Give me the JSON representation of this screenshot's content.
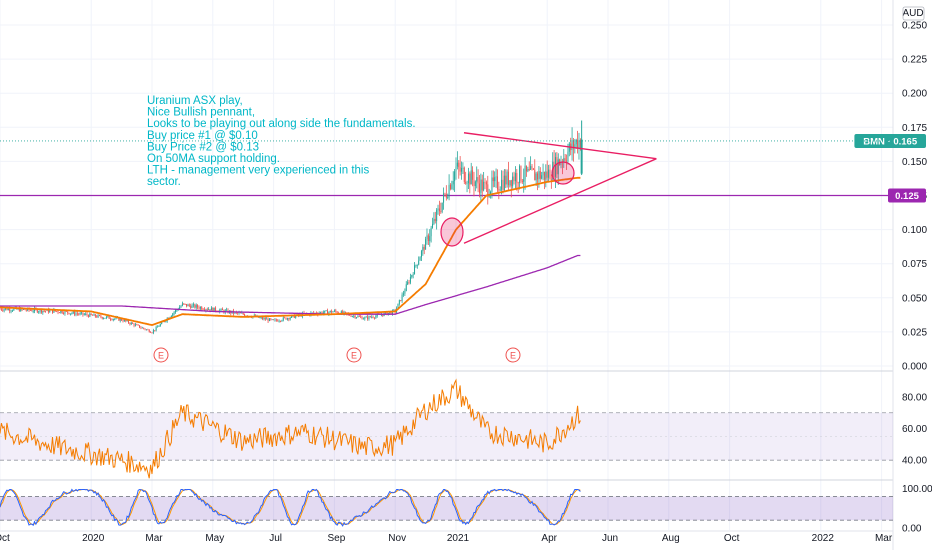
{
  "chart_data": {
    "type": "candlestick",
    "currency": "AUD",
    "price_axis": {
      "ticks": [
        "0.250",
        "0.225",
        "0.200",
        "0.175",
        "0.150",
        "0.125",
        "0.100",
        "0.075",
        "0.050",
        "0.025",
        "0.000"
      ],
      "ylim": [
        0.0,
        0.26
      ]
    },
    "time_axis": {
      "ticks": [
        "Oct",
        "2020",
        "Mar",
        "May",
        "Jul",
        "Sep",
        "Nov",
        "2021",
        "Apr",
        "Jun",
        "Aug",
        "Oct",
        "2022",
        "Mar"
      ]
    },
    "badges": [
      {
        "label": "BMN · 0.165",
        "value": 0.165,
        "color": "#26a69a"
      },
      {
        "label": "0.125",
        "value": 0.125,
        "color": "#9c27b0"
      }
    ],
    "horizontal_line": {
      "value": 0.125,
      "color": "#9c27b0"
    },
    "annotation_lines": [
      "Uranium ASX play,",
      "Nice Bullish pennant,",
      "Looks to be playing out along side the fundamentals.",
      "Buy price #1 @ $0.10",
      "Buy Price #2 @ $0.13",
      "On 50MA support holding.",
      "LTH - management very experienced in this",
      "sector."
    ],
    "pennant": {
      "upper_start": [
        "2021-01",
        0.171
      ],
      "upper_end": [
        "2021-07",
        0.152
      ],
      "lower_start": [
        "2021-01",
        0.09
      ],
      "lower_end": [
        "2021-07",
        0.152
      ]
    },
    "earnings_markers": [
      "E",
      "E",
      "E"
    ],
    "close_anchor_points": [
      [
        "2019-10",
        0.042
      ],
      [
        "2019-12",
        0.04
      ],
      [
        "2020-02",
        0.034
      ],
      [
        "2020-03",
        0.025
      ],
      [
        "2020-04",
        0.045
      ],
      [
        "2020-06",
        0.038
      ],
      [
        "2020-07",
        0.033
      ],
      [
        "2020-08",
        0.038
      ],
      [
        "2020-09",
        0.04
      ],
      [
        "2020-10",
        0.035
      ],
      [
        "2020-11",
        0.04
      ],
      [
        "2020-12",
        0.09
      ],
      [
        "2021-01",
        0.145
      ],
      [
        "2021-02",
        0.13
      ],
      [
        "2021-03",
        0.14
      ],
      [
        "2021-04",
        0.14
      ],
      [
        "2021-05",
        0.165
      ]
    ],
    "ma50_anchor_points": [
      [
        "2019-10",
        0.043
      ],
      [
        "2020-01",
        0.04
      ],
      [
        "2020-03",
        0.03
      ],
      [
        "2020-04",
        0.038
      ],
      [
        "2020-06",
        0.036
      ],
      [
        "2020-09",
        0.038
      ],
      [
        "2020-11",
        0.04
      ],
      [
        "2020-12",
        0.06
      ],
      [
        "2021-01",
        0.1
      ],
      [
        "2021-02",
        0.125
      ],
      [
        "2021-04",
        0.135
      ],
      [
        "2021-05",
        0.138
      ]
    ],
    "ma200_anchor_points": [
      [
        "2019-10",
        0.044
      ],
      [
        "2020-02",
        0.044
      ],
      [
        "2020-05",
        0.04
      ],
      [
        "2020-09",
        0.038
      ],
      [
        "2020-11",
        0.038
      ],
      [
        "2020-12",
        0.045
      ],
      [
        "2021-02",
        0.058
      ],
      [
        "2021-04",
        0.072
      ],
      [
        "2021-05",
        0.081
      ]
    ],
    "rsi": {
      "ticks": [
        "80.00",
        "60.00",
        "40.00"
      ],
      "band": [
        40,
        70
      ],
      "anchor_points": [
        [
          "2019-10",
          58
        ],
        [
          "2019-12",
          48
        ],
        [
          "2020-02",
          40
        ],
        [
          "2020-03",
          35
        ],
        [
          "2020-04",
          70
        ],
        [
          "2020-06",
          52
        ],
        [
          "2020-08",
          58
        ],
        [
          "2020-10",
          48
        ],
        [
          "2020-11",
          50
        ],
        [
          "2020-12",
          72
        ],
        [
          "2021-01",
          85
        ],
        [
          "2021-02",
          58
        ],
        [
          "2021-03",
          55
        ],
        [
          "2021-04",
          50
        ],
        [
          "2021-05",
          68
        ]
      ]
    },
    "stoch": {
      "ticks": [
        "100.00",
        "0.00"
      ],
      "band": [
        20,
        80
      ]
    },
    "colors": {
      "up": "#26a69a",
      "down": "#ef5350",
      "ma50": "#f57c00",
      "ma200": "#9c27b0",
      "pennant": "#e91e63",
      "rsi": "#f57c00",
      "annotation": "#00b7c7"
    }
  }
}
